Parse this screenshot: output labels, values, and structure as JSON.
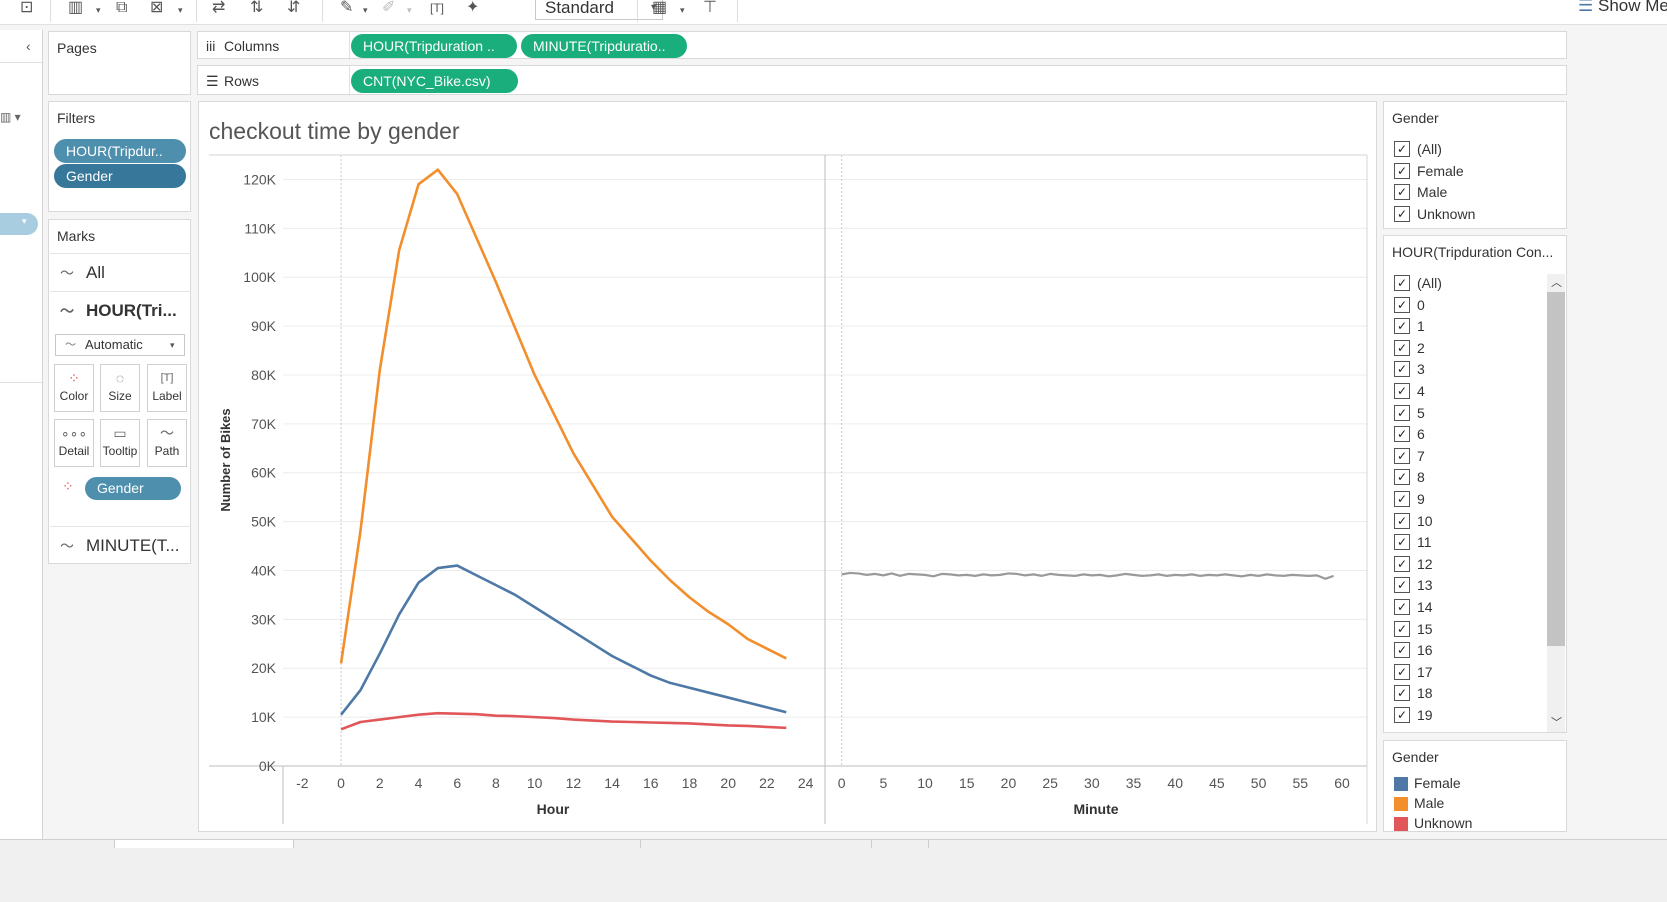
{
  "toolbar": {
    "fit_value": "Standard",
    "show_me_label": "Show Me"
  },
  "shelves": {
    "pages_label": "Pages",
    "columns_label": "Columns",
    "rows_label": "Rows",
    "columns_pills": [
      "HOUR(Tripduration ..",
      "MINUTE(Tripduratio.."
    ],
    "rows_pills": [
      "CNT(NYC_Bike.csv)"
    ]
  },
  "filters": {
    "title": "Filters",
    "pills": [
      "HOUR(Tripdur..",
      "Gender"
    ]
  },
  "marks": {
    "title": "Marks",
    "rows": [
      "All",
      "HOUR(Tri...",
      "MINUTE(T..."
    ],
    "mark_type": "Automatic",
    "buttons": [
      "Color",
      "Size",
      "Label",
      "Detail",
      "Tooltip",
      "Path"
    ],
    "color_pill": "Gender"
  },
  "gender_filter": {
    "title": "Gender",
    "options": [
      "(All)",
      "Female",
      "Male",
      "Unknown"
    ]
  },
  "hour_filter": {
    "title": "HOUR(Tripduration Con...",
    "options": [
      "(All)",
      "0",
      "1",
      "2",
      "3",
      "4",
      "5",
      "6",
      "7",
      "8",
      "9",
      "10",
      "11",
      "12",
      "13",
      "14",
      "15",
      "16",
      "17",
      "18",
      "19"
    ]
  },
  "legend": {
    "title": "Gender",
    "items": [
      {
        "label": "Female",
        "color": "#4e79a7"
      },
      {
        "label": "Male",
        "color": "#f28e2b"
      },
      {
        "label": "Unknown",
        "color": "#e15759"
      }
    ]
  },
  "chart_data": {
    "type": "line",
    "title": "checkout time by gender",
    "ylabel": "Number of Bikes",
    "ylim": [
      0,
      125000
    ],
    "yticks": [
      0,
      10000,
      20000,
      30000,
      40000,
      50000,
      60000,
      70000,
      80000,
      90000,
      100000,
      110000,
      120000
    ],
    "ytick_labels": [
      "0K",
      "10K",
      "20K",
      "30K",
      "40K",
      "50K",
      "60K",
      "70K",
      "80K",
      "90K",
      "100K",
      "110K",
      "120K"
    ],
    "panes": [
      {
        "xlabel": "Hour",
        "xlim": [
          -3,
          25
        ],
        "xticks": [
          -2,
          0,
          2,
          4,
          6,
          8,
          10,
          12,
          14,
          16,
          18,
          20,
          22,
          24
        ],
        "x": [
          0,
          1,
          2,
          3,
          4,
          5,
          6,
          7,
          8,
          9,
          10,
          11,
          12,
          13,
          14,
          15,
          16,
          17,
          18,
          19,
          20,
          21,
          22,
          23
        ],
        "series": [
          {
            "name": "Male",
            "color": "#f28e2b",
            "values": [
              21000,
              48000,
              81000,
              105500,
              119000,
              122000,
              117000,
              108000,
              99000,
              89500,
              80000,
              72000,
              64000,
              57500,
              51000,
              46500,
              42000,
              38000,
              34500,
              31500,
              29000,
              26000,
              24000,
              22000
            ]
          },
          {
            "name": "Female",
            "color": "#4e79a7",
            "values": [
              10500,
              15500,
              23000,
              31000,
              37500,
              40500,
              41000,
              39000,
              37000,
              35000,
              32500,
              30000,
              27500,
              25000,
              22500,
              20500,
              18500,
              17000,
              16000,
              15000,
              14000,
              13000,
              12000,
              11000
            ]
          },
          {
            "name": "Unknown",
            "color": "#e15759",
            "values": [
              7500,
              9000,
              9500,
              10000,
              10500,
              10800,
              10700,
              10600,
              10300,
              10200,
              10000,
              9800,
              9500,
              9300,
              9100,
              9000,
              8900,
              8800,
              8700,
              8500,
              8300,
              8200,
              8000,
              7800
            ]
          }
        ]
      },
      {
        "xlabel": "Minute",
        "xlim": [
          -2,
          63
        ],
        "xticks": [
          0,
          5,
          10,
          15,
          20,
          25,
          30,
          35,
          40,
          45,
          50,
          55,
          60
        ],
        "x": [
          0,
          1,
          2,
          3,
          4,
          5,
          6,
          7,
          8,
          9,
          10,
          11,
          12,
          13,
          14,
          15,
          16,
          17,
          18,
          19,
          20,
          21,
          22,
          23,
          24,
          25,
          26,
          27,
          28,
          29,
          30,
          31,
          32,
          33,
          34,
          35,
          36,
          37,
          38,
          39,
          40,
          41,
          42,
          43,
          44,
          45,
          46,
          47,
          48,
          49,
          50,
          51,
          52,
          53,
          54,
          55,
          56,
          57,
          58,
          59
        ],
        "series": [
          {
            "name": "All",
            "color": "#9a9a9a",
            "values": [
              39200,
              39500,
              39400,
              39100,
              39300,
              39000,
              39400,
              38900,
              39300,
              39200,
              39100,
              38800,
              39300,
              39200,
              39000,
              39100,
              38900,
              39200,
              39000,
              39100,
              39400,
              39300,
              39000,
              39200,
              38900,
              39300,
              39100,
              39000,
              38900,
              39200,
              39000,
              39100,
              38800,
              39000,
              39300,
              39100,
              38900,
              39000,
              39200,
              38900,
              39100,
              39000,
              39200,
              38900,
              39100,
              39000,
              39200,
              39000,
              38800,
              39100,
              38900,
              39200,
              39000,
              38900,
              39100,
              39000,
              38900,
              39000,
              38300,
              38900
            ]
          }
        ]
      }
    ]
  }
}
